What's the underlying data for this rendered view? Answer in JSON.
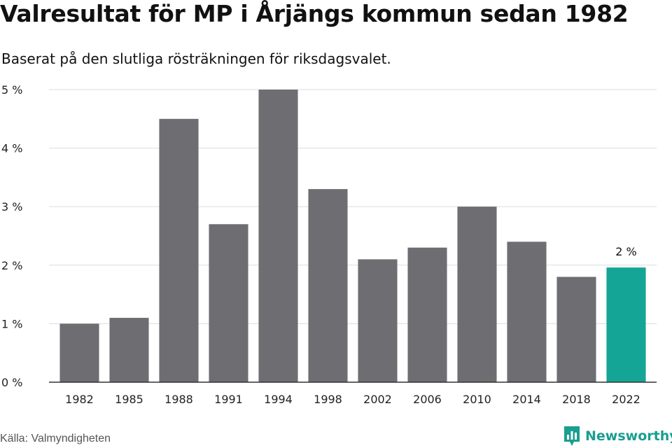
{
  "title": "Valresultat för MP i Årjängs kommun sedan 1982",
  "subtitle": "Baserat på den slutliga rösträkningen för riksdagsvalet.",
  "source": "Källa: Valmyndigheten",
  "brand": "Newsworthy",
  "colors": {
    "bar": "#6e6d72",
    "highlight": "#14a596",
    "grid": "#dddddd",
    "axis": "#333333",
    "brand": "#1a9e8f"
  },
  "chart_data": {
    "type": "bar",
    "title": "Valresultat för MP i Årjängs kommun sedan 1982",
    "subtitle": "Baserat på den slutliga rösträkningen för riksdagsvalet.",
    "xlabel": "",
    "ylabel": "",
    "categories": [
      "1982",
      "1985",
      "1988",
      "1991",
      "1994",
      "1998",
      "2002",
      "2006",
      "2010",
      "2014",
      "2018",
      "2022"
    ],
    "values": [
      1.0,
      1.1,
      4.5,
      2.7,
      5.0,
      3.3,
      2.1,
      2.3,
      3.0,
      2.4,
      1.8,
      1.96
    ],
    "ylim": [
      0,
      5
    ],
    "yticks": [
      "0 %",
      "1 %",
      "2 %",
      "3 %",
      "4 %",
      "5 %"
    ],
    "grid": true,
    "highlight_category": "2022",
    "annotations": [
      {
        "category": "2022",
        "text": "2 %"
      }
    ]
  }
}
